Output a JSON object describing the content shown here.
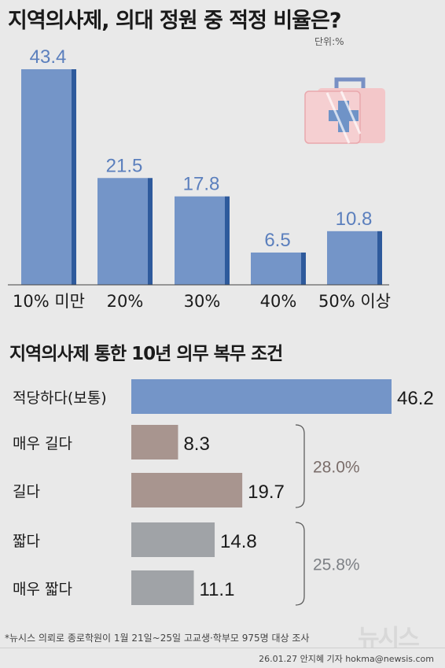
{
  "title": "지역의사제, 의대 정원 중 적정 비율은?",
  "unit": "단위:%",
  "chart_data": [
    {
      "type": "bar",
      "categories": [
        "10% 미만",
        "20%",
        "30%",
        "40%",
        "50% 이상"
      ],
      "values": [
        43.4,
        21.5,
        17.8,
        6.5,
        10.8
      ],
      "value_labels": [
        "43.4",
        "21.5",
        "17.8",
        "6.5",
        "10.8"
      ],
      "title": "지역의사제, 의대 정원 중 적정 비율은?",
      "ylim": [
        0,
        47
      ],
      "grid": false,
      "color": "#7495c8"
    },
    {
      "type": "bar",
      "orientation": "horizontal",
      "title": "지역의사제 통한 10년 의무 복무 조건",
      "categories": [
        "적당하다(보통)",
        "매우 길다",
        "길다",
        "짧다",
        "매우 짧다"
      ],
      "values": [
        46.2,
        8.3,
        19.7,
        14.8,
        11.1
      ],
      "value_labels": [
        "46.2",
        "8.3",
        "19.7",
        "14.8",
        "11.1"
      ],
      "colors": [
        "#7495c8",
        "#a8958f",
        "#a8958f",
        "#a0a3a7",
        "#a0a3a7"
      ],
      "xlim": [
        0,
        46.2
      ],
      "groups": [
        {
          "label": "28.0%",
          "members": [
            "매우 길다",
            "길다"
          ],
          "color": "#7a6d6a"
        },
        {
          "label": "25.8%",
          "members": [
            "짧다",
            "매우 짧다"
          ],
          "color": "#7d8085"
        }
      ]
    }
  ],
  "section2": {
    "title_part1": "지역의사제 통한 ",
    "title_part2": "10년 의무 복무",
    "title_part3": " 조건"
  },
  "footnote": "*뉴시스 의뢰로 종로학원이 1월 21일~25일 고교생·학부모 975명 대상 조사",
  "credit": "26.01.27 안지혜 기자 hokma@newsis.com",
  "watermark": "뉴시스",
  "icons": {
    "medkit": "first-aid-kit-icon"
  }
}
